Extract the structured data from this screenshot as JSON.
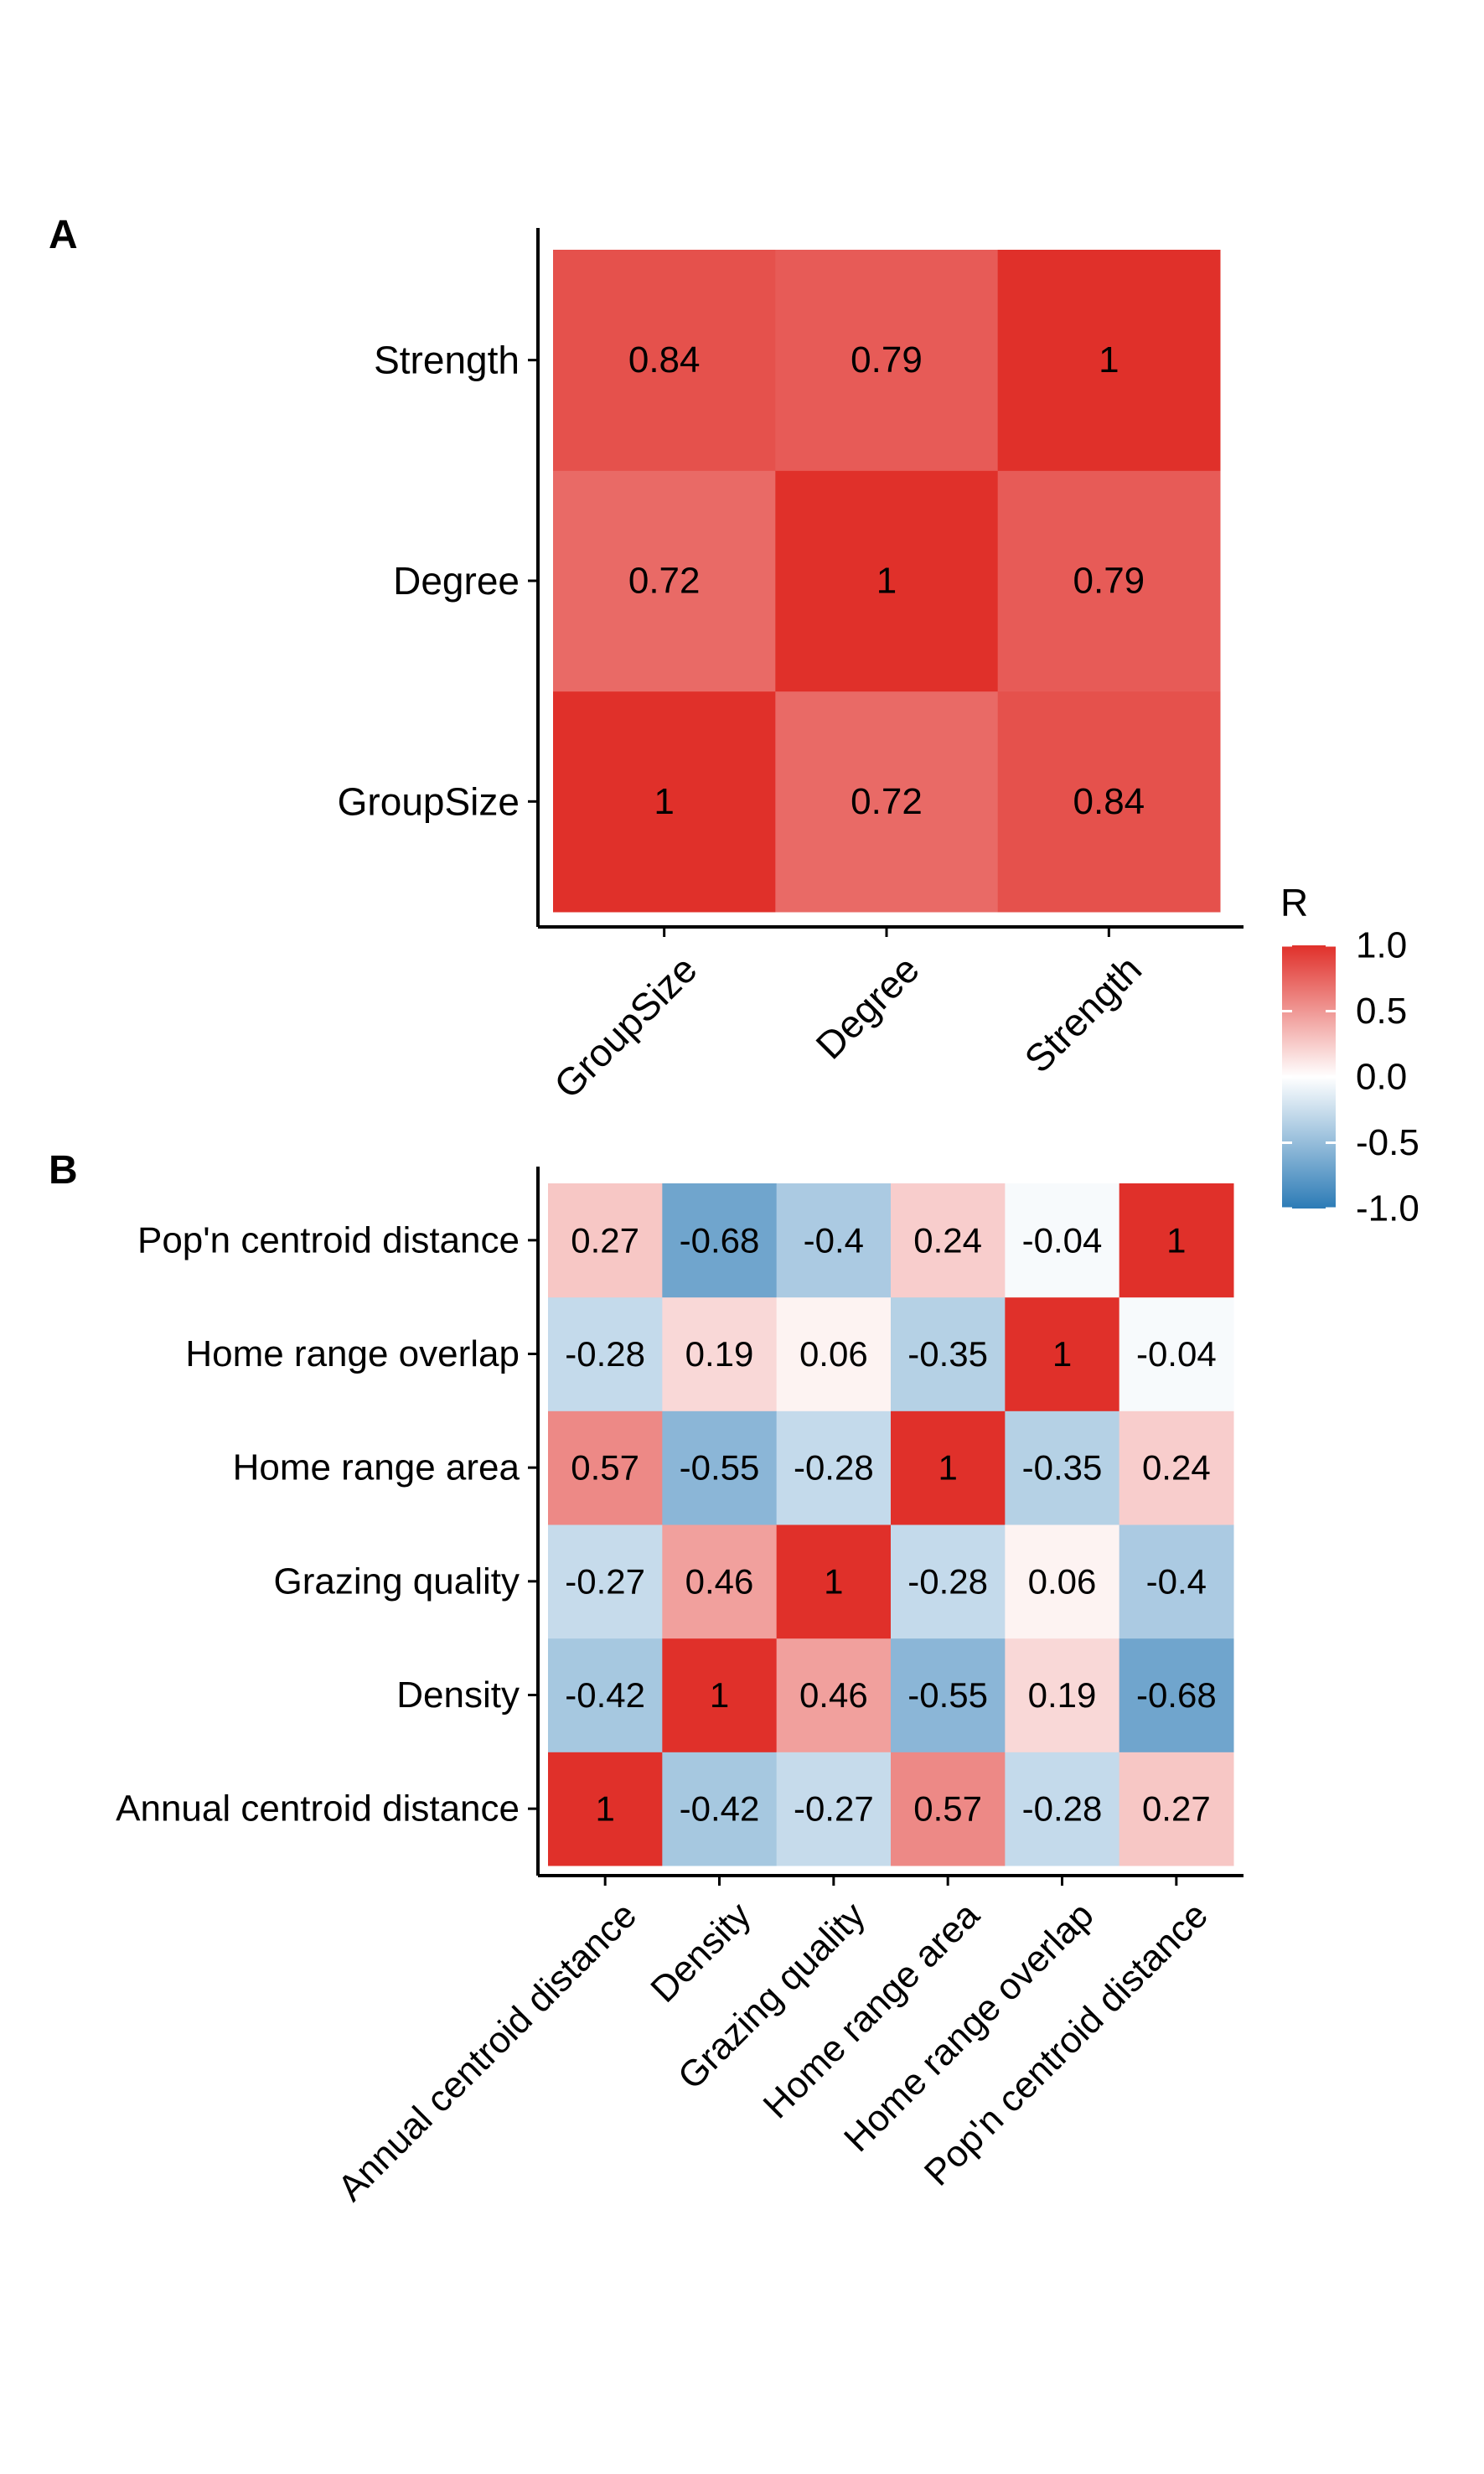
{
  "legend": {
    "title": "R",
    "ticks": [
      1.0,
      0.5,
      0.0,
      -0.5,
      -1.0
    ],
    "tick_labels": [
      "1.0",
      "0.5",
      "0.0",
      "-0.5",
      "-1.0"
    ],
    "range": [
      -1,
      1
    ],
    "colors": {
      "low": "#2c7bb6",
      "mid": "#ffffff",
      "high": "#e0302a"
    }
  },
  "chart_data": [
    {
      "panel_label": "A",
      "type": "heatmap",
      "x_categories": [
        "GroupSize",
        "Degree",
        "Strength"
      ],
      "y_categories": [
        "GroupSize",
        "Degree",
        "Strength"
      ],
      "values": [
        [
          1,
          0.72,
          0.84
        ],
        [
          0.72,
          1,
          0.79
        ],
        [
          0.84,
          0.79,
          1
        ]
      ],
      "value_labels": [
        [
          "1",
          "0.72",
          "0.84"
        ],
        [
          "0.72",
          "1",
          "0.79"
        ],
        [
          "0.84",
          "0.79",
          "1"
        ]
      ]
    },
    {
      "panel_label": "B",
      "type": "heatmap",
      "x_categories": [
        "Annual centroid distance",
        "Density",
        "Grazing quality",
        "Home range area",
        "Home range overlap",
        "Pop'n centroid distance"
      ],
      "y_categories": [
        "Annual centroid distance",
        "Density",
        "Grazing quality",
        "Home range area",
        "Home range overlap",
        "Pop'n centroid distance"
      ],
      "values": [
        [
          1,
          -0.42,
          -0.27,
          0.57,
          -0.28,
          0.27
        ],
        [
          -0.42,
          1,
          0.46,
          -0.55,
          0.19,
          -0.68
        ],
        [
          -0.27,
          0.46,
          1,
          -0.28,
          0.06,
          -0.4
        ],
        [
          0.57,
          -0.55,
          -0.28,
          1,
          -0.35,
          0.24
        ],
        [
          -0.28,
          0.19,
          0.06,
          -0.35,
          1,
          -0.04
        ],
        [
          0.27,
          -0.68,
          -0.4,
          0.24,
          -0.04,
          1
        ]
      ],
      "value_labels": [
        [
          "1",
          "-0.42",
          "-0.27",
          "0.57",
          "-0.28",
          "0.27"
        ],
        [
          "-0.42",
          "1",
          "0.46",
          "-0.55",
          "0.19",
          "-0.68"
        ],
        [
          "-0.27",
          "0.46",
          "1",
          "-0.28",
          "0.06",
          "-0.4"
        ],
        [
          "0.57",
          "-0.55",
          "-0.28",
          "1",
          "-0.35",
          "0.24"
        ],
        [
          "-0.28",
          "0.19",
          "0.06",
          "-0.35",
          "1",
          "-0.04"
        ],
        [
          "0.27",
          "-0.68",
          "-0.4",
          "0.24",
          "-0.04",
          "1"
        ]
      ]
    }
  ]
}
